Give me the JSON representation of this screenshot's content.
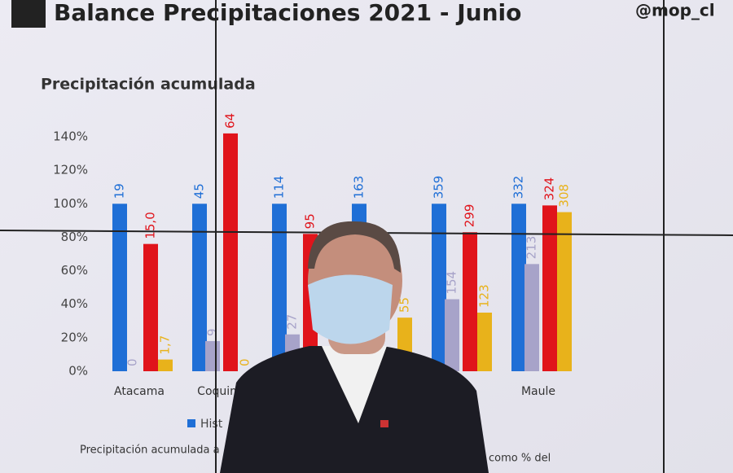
{
  "header": {
    "title": "Balance Precipitaciones 2021 - Junio",
    "handle": "@mop_cl"
  },
  "chart_data": {
    "type": "bar",
    "title": "Precipitación acumulada",
    "categories": [
      "Atacama",
      "Coquim",
      null,
      null,
      null,
      "Maule"
    ],
    "series": [
      {
        "name": "Hist",
        "color": "#1f6fd6",
        "values": [
          100,
          100,
          100,
          100,
          100,
          100
        ],
        "labels": [
          "19",
          "45",
          "114",
          "163",
          "359",
          "332"
        ]
      },
      {
        "name": null,
        "color": "#a7a3c9",
        "values": [
          0,
          18,
          22,
          null,
          43,
          64
        ],
        "labels": [
          "0",
          "9",
          "27",
          null,
          "154",
          "213"
        ]
      },
      {
        "name": null,
        "color": "#e0141b",
        "values": [
          76,
          142,
          82,
          null,
          83,
          99
        ],
        "labels": [
          "15,0",
          "64",
          "95",
          null,
          "299",
          "324"
        ]
      },
      {
        "name": null,
        "color": "#e8b21b",
        "values": [
          7,
          0,
          null,
          32,
          35,
          95
        ],
        "labels": [
          "1,7",
          "0",
          null,
          "55",
          "123",
          "308"
        ]
      }
    ],
    "ylim": [
      0,
      140
    ],
    "yticks": [
      {
        "value": 0,
        "label": "0%"
      },
      {
        "value": 20,
        "label": "20%"
      },
      {
        "value": 40,
        "label": "40%"
      },
      {
        "value": 60,
        "label": "60%"
      },
      {
        "value": 80,
        "label": "80%"
      },
      {
        "value": 100,
        "label": "100%"
      },
      {
        "value": 120,
        "label": "120%"
      },
      {
        "value": 140,
        "label": "140%"
      }
    ],
    "footnote": [
      "Precipitación acumulada a",
      "como % del"
    ]
  }
}
